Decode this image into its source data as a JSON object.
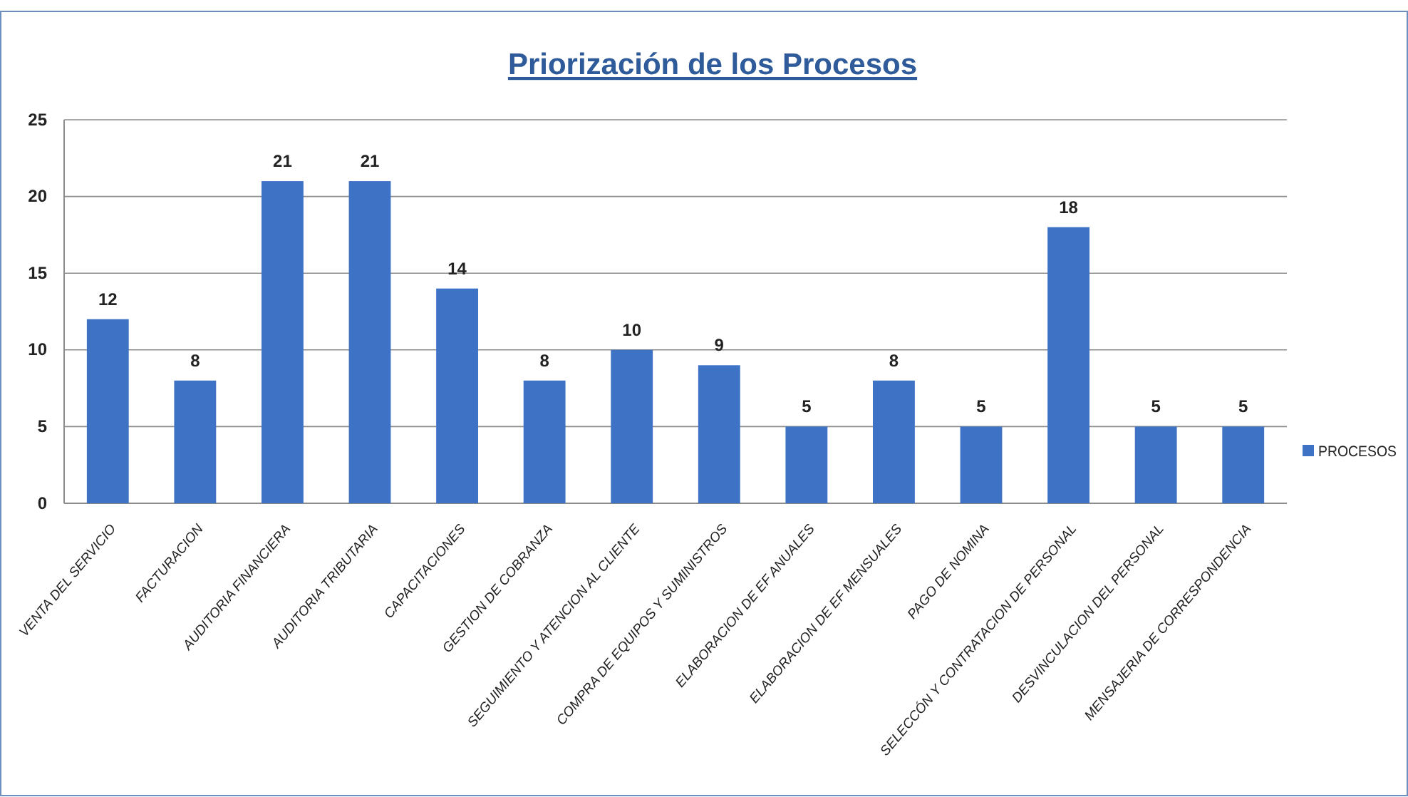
{
  "chart_data": {
    "type": "bar",
    "title": "Priorización de los Procesos",
    "categories": [
      "VENTA DEL SERVICIO",
      "FACTURACION",
      "AUDITORIA FINANCIERA",
      "AUDITORIA TRIBUTARIA",
      "CAPACITACIONES",
      "GESTION DE COBRANZA",
      "SEGUIMIENTO Y ATENCION AL CLIENTE",
      "COMPRA DE EQUIPOS Y SUMINISTROS",
      "ELABORACION DE EF ANUALES",
      "ELABORACION DE EF MENSUALES",
      "PAGO DE NOMINA",
      "SELECCÓN Y CONTRATACION DE PERSONAL",
      "DESVINCULACION DEL PERSONAL",
      "MENSAJERIA DE CORRESPONDENCIA"
    ],
    "series": [
      {
        "name": "PROCESOS",
        "color": "#3d72c4",
        "values": [
          12,
          8,
          21,
          21,
          14,
          8,
          10,
          9,
          5,
          8,
          5,
          18,
          5,
          5
        ]
      }
    ],
    "ylim": [
      0,
      25
    ],
    "yticks": [
      0,
      5,
      10,
      15,
      20,
      25
    ],
    "grid": "y",
    "legend": "right",
    "data_labels": true
  }
}
